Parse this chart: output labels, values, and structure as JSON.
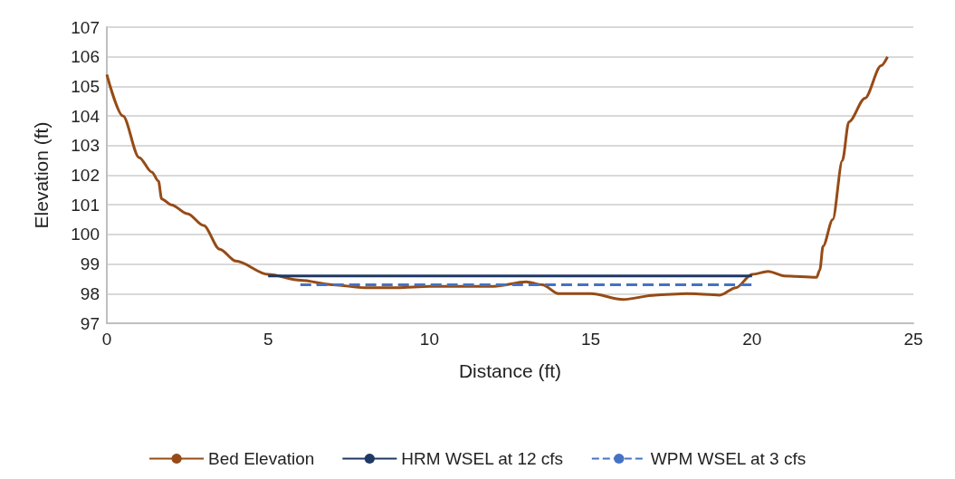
{
  "chart_data": {
    "type": "line",
    "xlabel": "Distance (ft)",
    "ylabel": "Elevation (ft)",
    "xlim": [
      0,
      25
    ],
    "xticks": [
      0,
      5,
      10,
      15,
      20,
      25
    ],
    "ylim": [
      97,
      107
    ],
    "yticks": [
      97,
      98,
      99,
      100,
      101,
      102,
      103,
      104,
      105,
      106,
      107
    ],
    "grid": "y",
    "legend": "bottom",
    "marker": "none",
    "series": [
      {
        "name": "Bed Elevation",
        "color": "#964B16",
        "line_style": "solid",
        "x": [
          0,
          0.5,
          1,
          1.4,
          1.6,
          1.7,
          2,
          2.5,
          3,
          3.5,
          4,
          5,
          6,
          7,
          8,
          9,
          10,
          11,
          12,
          13,
          13.5,
          14,
          15,
          16,
          17,
          18,
          19,
          19.5,
          20,
          20.5,
          21,
          22,
          22.1,
          22.2,
          22.5,
          22.8,
          23,
          23.5,
          24,
          24.2
        ],
        "values": [
          105.4,
          104,
          102.6,
          102.1,
          101.8,
          101.2,
          101,
          100.7,
          100.3,
          99.5,
          99.1,
          98.65,
          98.45,
          98.3,
          98.2,
          98.2,
          98.25,
          98.25,
          98.25,
          98.4,
          98.3,
          98,
          98,
          97.8,
          97.95,
          98,
          97.95,
          98.2,
          98.65,
          98.75,
          98.6,
          98.55,
          98.8,
          99.6,
          100.5,
          102.5,
          103.8,
          104.6,
          105.7,
          106
        ]
      },
      {
        "name": "HRM WSEL at 12 cfs",
        "color": "#1F3864",
        "line_style": "solid",
        "x": [
          5,
          20
        ],
        "values": [
          98.6,
          98.6
        ]
      },
      {
        "name": "WPM WSEL at 3 cfs",
        "color": "#4472C4",
        "line_style": "dashed",
        "x": [
          6,
          20
        ],
        "values": [
          98.3,
          98.3
        ]
      }
    ]
  }
}
